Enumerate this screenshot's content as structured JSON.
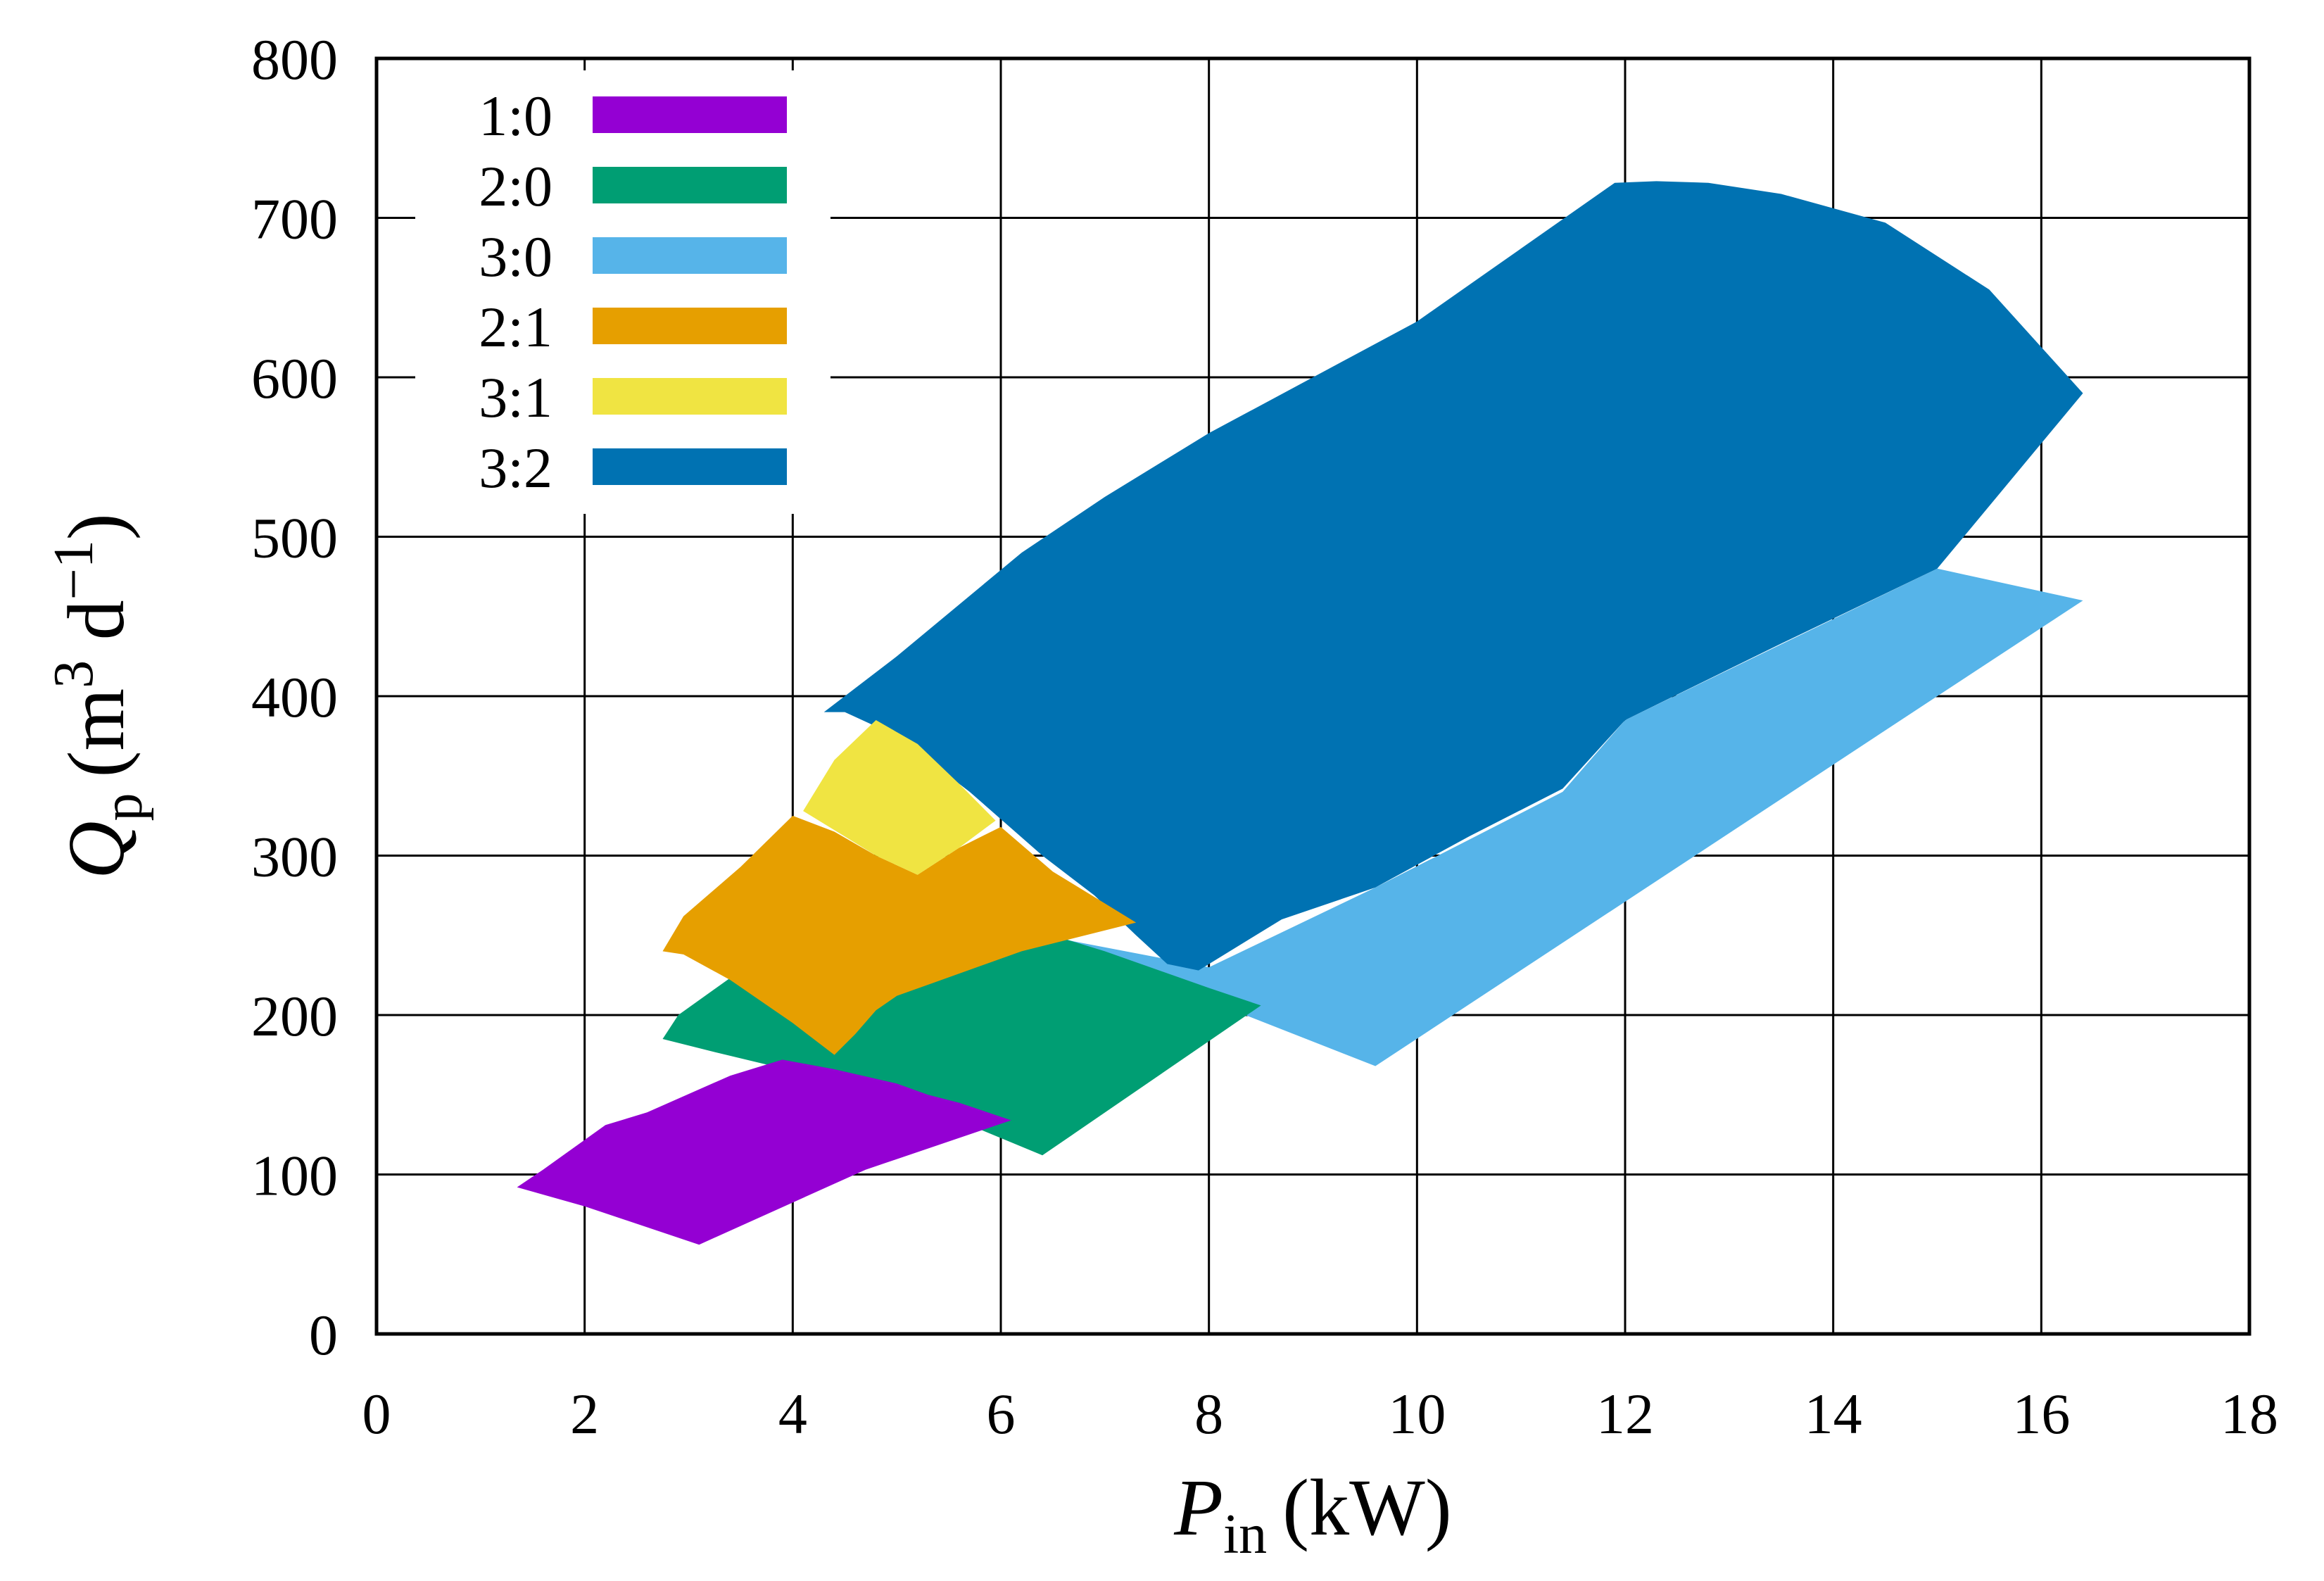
{
  "chart_data": {
    "type": "area",
    "title": "",
    "xlabel": {
      "var": "P",
      "sub": "in",
      "unit": "(kW)"
    },
    "ylabel": {
      "var": "Q",
      "sub": "p",
      "unit_open": "(m",
      "unit_sup1": "3",
      "unit_mid": " d",
      "unit_sup2": "−1",
      "unit_close": ")"
    },
    "xlim": [
      0,
      18
    ],
    "ylim": [
      0,
      800
    ],
    "xticks": [
      0,
      2,
      4,
      6,
      8,
      10,
      12,
      14,
      16,
      18
    ],
    "yticks": [
      0,
      100,
      200,
      300,
      400,
      500,
      600,
      700,
      800
    ],
    "grid": true,
    "legend_position": "top-left",
    "series": [
      {
        "name": "3:0",
        "color": "#56B4E9",
        "region": [
          [
            6.0,
            255
          ],
          [
            8.0,
            230
          ],
          [
            9.6,
            280
          ],
          [
            11.4,
            340
          ],
          [
            12.0,
            385
          ],
          [
            15.0,
            480
          ],
          [
            16.4,
            460
          ],
          [
            15.0,
            400
          ],
          [
            9.6,
            168
          ],
          [
            6.2,
            255
          ]
        ]
      },
      {
        "name": "3:2",
        "color": "#0072B2",
        "region": [
          [
            4.3,
            390
          ],
          [
            4.5,
            390
          ],
          [
            5.0,
            375
          ],
          [
            5.7,
            340
          ],
          [
            6.4,
            300
          ],
          [
            6.9,
            275
          ],
          [
            7.3,
            250
          ],
          [
            7.6,
            232
          ],
          [
            7.9,
            228
          ],
          [
            8.7,
            260
          ],
          [
            9.6,
            280
          ],
          [
            10.5,
            312
          ],
          [
            11.4,
            342
          ],
          [
            12.0,
            385
          ],
          [
            13.5,
            433
          ],
          [
            15.0,
            480
          ],
          [
            16.4,
            590
          ],
          [
            15.5,
            655
          ],
          [
            14.5,
            697
          ],
          [
            13.5,
            715
          ],
          [
            12.8,
            722
          ],
          [
            12.3,
            723
          ],
          [
            11.9,
            722
          ],
          [
            10.0,
            635
          ],
          [
            8.0,
            565
          ],
          [
            7.0,
            525
          ],
          [
            6.2,
            490
          ],
          [
            5.0,
            425
          ],
          [
            4.3,
            390
          ]
        ]
      },
      {
        "name": "2:0",
        "color": "#009E73",
        "region": [
          [
            2.75,
            185
          ],
          [
            2.9,
            200
          ],
          [
            3.5,
            228
          ],
          [
            4.2,
            262
          ],
          [
            5.0,
            275
          ],
          [
            6.0,
            260
          ],
          [
            7.0,
            240
          ],
          [
            8.0,
            217
          ],
          [
            8.5,
            206
          ],
          [
            6.4,
            112
          ],
          [
            5.0,
            150
          ],
          [
            4.0,
            165
          ],
          [
            3.3,
            176
          ],
          [
            2.75,
            185
          ]
        ]
      },
      {
        "name": "2:1",
        "color": "#E69F00",
        "region": [
          [
            2.75,
            240
          ],
          [
            2.95,
            262
          ],
          [
            3.5,
            293
          ],
          [
            4.0,
            325
          ],
          [
            4.4,
            315
          ],
          [
            4.8,
            300
          ],
          [
            5.2,
            288
          ],
          [
            5.6,
            305
          ],
          [
            6.0,
            318
          ],
          [
            6.5,
            290
          ],
          [
            7.0,
            270
          ],
          [
            7.3,
            258
          ],
          [
            6.2,
            240
          ],
          [
            5.0,
            212
          ],
          [
            4.8,
            203
          ],
          [
            4.6,
            188
          ],
          [
            4.4,
            175
          ],
          [
            4.0,
            195
          ],
          [
            3.4,
            222
          ],
          [
            2.95,
            238
          ],
          [
            2.75,
            240
          ]
        ]
      },
      {
        "name": "3:1",
        "color": "#F0E442",
        "region": [
          [
            4.1,
            328
          ],
          [
            4.4,
            360
          ],
          [
            4.8,
            385
          ],
          [
            5.2,
            370
          ],
          [
            5.6,
            345
          ],
          [
            5.95,
            322
          ],
          [
            5.6,
            305
          ],
          [
            5.2,
            288
          ],
          [
            4.8,
            300
          ],
          [
            4.4,
            316
          ],
          [
            4.1,
            328
          ]
        ]
      },
      {
        "name": "1:0",
        "color": "#9400D3",
        "region": [
          [
            1.35,
            92
          ],
          [
            1.6,
            103
          ],
          [
            2.2,
            131
          ],
          [
            2.6,
            139
          ],
          [
            3.4,
            162
          ],
          [
            3.9,
            172
          ],
          [
            4.4,
            166
          ],
          [
            5.0,
            157
          ],
          [
            5.3,
            150
          ],
          [
            5.6,
            145
          ],
          [
            6.1,
            134
          ],
          [
            4.7,
            103
          ],
          [
            3.1,
            56
          ],
          [
            2.0,
            80
          ],
          [
            1.35,
            92
          ]
        ]
      }
    ],
    "legend_order": [
      "1:0",
      "2:0",
      "3:0",
      "2:1",
      "3:1",
      "3:2"
    ]
  }
}
